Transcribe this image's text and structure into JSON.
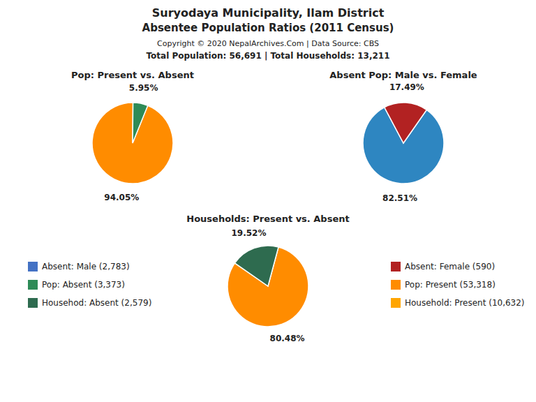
{
  "title": "Suryodaya Municipality, Ilam District",
  "subtitle": "Absentee Population Ratios (2011 Census)",
  "annotations": [
    "Copyright © 2020 NepalArchives.Com | Data Source: CBS",
    "Total Population: 56,691 | Total Households: 13,211"
  ],
  "legend_items": [
    {
      "label": "Absent: Male (2,783)",
      "color": "#4472C4"
    },
    {
      "label": "Absent: Female (590)",
      "color": "#B22222"
    },
    {
      "label": "Pop: Absent (3,373)",
      "color": "#2E8B57"
    },
    {
      "label": "Pop: Present (53,318)",
      "color": "#FF8C00"
    },
    {
      "label": "Househod: Absent (2,579)",
      "color": "#2E6B4F"
    },
    {
      "label": "Household: Present (10,632)",
      "color": "#FFA500"
    }
  ],
  "chart_data": [
    {
      "type": "pie",
      "title": "Pop: Present vs. Absent",
      "values": [
        94.05,
        5.95
      ],
      "value_labels": [
        "94.05%",
        "5.95%"
      ],
      "colors": [
        "#FF8C00",
        "#2E8B57"
      ],
      "data_labels": true
    },
    {
      "type": "pie",
      "title": "Absent Pop: Male vs. Female",
      "values": [
        82.51,
        17.49
      ],
      "value_labels": [
        "82.51%",
        "17.49%"
      ],
      "colors": [
        "#2E86C1",
        "#B22222"
      ],
      "data_labels": true
    },
    {
      "type": "pie",
      "title": "Households: Present vs. Absent",
      "values": [
        80.48,
        19.52
      ],
      "value_labels": [
        "80.48%",
        "19.52%"
      ],
      "colors": [
        "#FF8C00",
        "#2E6B4F"
      ],
      "data_labels": true
    }
  ]
}
